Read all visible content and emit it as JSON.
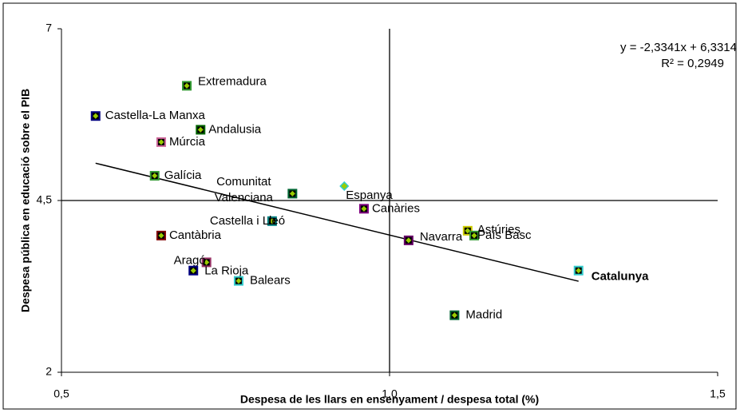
{
  "chart_data": {
    "type": "scatter",
    "x_label": "Despesa de les llars en ensenyament / despesa total (%)",
    "y_label": "Despesa pública en educació sobre el PIB",
    "xlim": [
      0.5,
      1.5
    ],
    "ylim": [
      2,
      7
    ],
    "xticks": [
      {
        "value": 0.5,
        "label": "0,5"
      },
      {
        "value": 1,
        "label": "1,0"
      },
      {
        "value": 1.5,
        "label": "1,5"
      }
    ],
    "yticks": [
      2,
      {
        "value": 4.5,
        "label": "4,5"
      },
      7
    ],
    "x_cross": 1,
    "y_cross": 4.5,
    "point_labels": [
      "Extremadura",
      "Castella-La Manxa",
      "Andalusia",
      "Múrcia",
      "Galícia",
      "Comunitat Valenciana",
      "Espanya",
      "Canàries",
      "Castella i Lleó",
      "Cantàbria",
      "Astúries",
      "País Basc",
      "Navarra",
      "Aragó",
      "La Rioja",
      "Balears",
      "Catalunya",
      "Madrid"
    ],
    "x": [
      0.691,
      0.552,
      0.712,
      0.652,
      0.642,
      0.852,
      0.931,
      0.961,
      0.821,
      0.652,
      1.119,
      1.129,
      1.029,
      0.721,
      0.701,
      0.77,
      1.288,
      1.099
    ],
    "y": [
      6.17,
      5.73,
      5.53,
      5.35,
      4.86,
      4.6,
      4.71,
      4.38,
      4.2,
      3.99,
      4.06,
      3.99,
      3.92,
      3.6,
      3.48,
      3.33,
      3.48,
      2.83
    ],
    "colors": [
      "#339933",
      "#000080",
      "#006600",
      "#cc6699",
      "#339933",
      "#006633",
      "#33cccc",
      "#800080",
      "#008080",
      "#800000",
      "#cccc00",
      "#339933",
      "#660066",
      "#993366",
      "#000080",
      "#33cccc",
      "#33cccc",
      "#006633"
    ],
    "markers": [
      "square",
      "square",
      "square",
      "square",
      "square",
      "square",
      "diamond",
      "square",
      "square",
      "square",
      "square",
      "square",
      "square",
      "square",
      "square",
      "square",
      "square",
      "square"
    ],
    "marker_fill": "#99cc00",
    "trendline": {
      "slope": -2.3341,
      "intercept": 6.3314
    },
    "equation": "y = -2,3341x + 6,3314",
    "r_squared": "R² = 0,2949"
  }
}
